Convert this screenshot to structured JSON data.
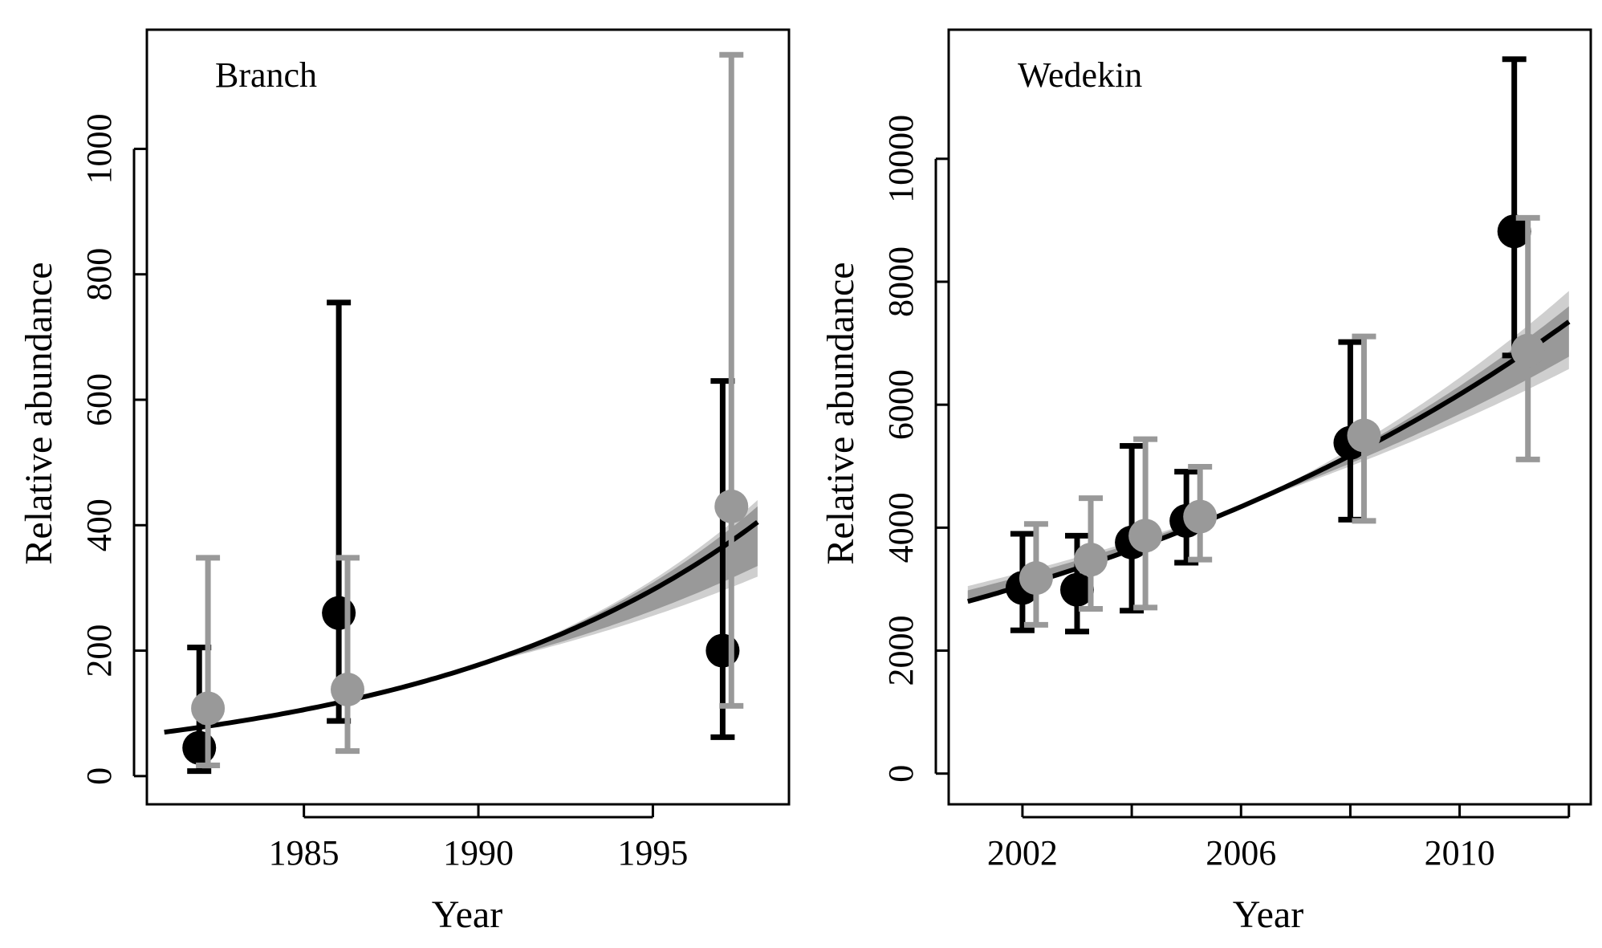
{
  "chart_data": [
    {
      "type": "scatter",
      "title": "Branch",
      "xlabel": "Year",
      "ylabel": "Relative abundance",
      "xlim": [
        1980.5,
        1998.9
      ],
      "ylim": [
        -45,
        1190
      ],
      "xticks": [
        1985,
        1990,
        1995
      ],
      "xtick_labels": [
        "1985",
        "1990",
        "1995"
      ],
      "yticks": [
        0,
        200,
        400,
        600,
        800,
        1000
      ],
      "ytick_labels": [
        "0",
        "200",
        "400",
        "600",
        "800",
        "1000"
      ],
      "grid": false,
      "colors": {
        "series_a": "#000000",
        "series_b": "#999999",
        "band_outer": "#cfcfcf",
        "band_inner": "#999999"
      },
      "series": [
        {
          "color": "#000000",
          "points": [
            {
              "x": 1982,
              "y": 45,
              "lo": 8,
              "hi": 205
            },
            {
              "x": 1986,
              "y": 260,
              "lo": 88,
              "hi": 755
            },
            {
              "x": 1997,
              "y": 200,
              "lo": 62,
              "hi": 630
            }
          ]
        },
        {
          "color": "#999999",
          "points": [
            {
              "x": 1982.25,
              "y": 108,
              "lo": 17,
              "hi": 348
            },
            {
              "x": 1986.25,
              "y": 138,
              "lo": 40,
              "hi": 348
            },
            {
              "x": 1997.25,
              "y": 430,
              "lo": 112,
              "hi": 1150
            }
          ]
        }
      ],
      "trend": {
        "x0": 1981,
        "x1": 1998,
        "y_at_x0": 70,
        "y_at_x1": 405,
        "pivot_x": 1990,
        "outer_hi_x1": 440,
        "outer_lo_x1": 318,
        "inner_hi_x1": 430,
        "inner_lo_x1": 335
      }
    },
    {
      "type": "scatter",
      "title": "Wedekin",
      "xlabel": "Year",
      "ylabel": "Relative abundance",
      "xlim": [
        2000.65,
        2012.4
      ],
      "ylim": [
        -500,
        12100
      ],
      "xticks": [
        2002,
        2004,
        2006,
        2008,
        2010,
        2012
      ],
      "xtick_labels": [
        "2002",
        "",
        "2006",
        "",
        "2010",
        ""
      ],
      "yticks": [
        0,
        2000,
        4000,
        6000,
        8000,
        10000
      ],
      "ytick_labels": [
        "0",
        "2000",
        "4000",
        "6000",
        "8000",
        "10000"
      ],
      "grid": false,
      "colors": {
        "series_a": "#000000",
        "series_b": "#999999",
        "band_outer": "#cfcfcf",
        "band_inner": "#999999"
      },
      "series": [
        {
          "color": "#000000",
          "points": [
            {
              "x": 2002,
              "y": 3020,
              "lo": 2330,
              "hi": 3900
            },
            {
              "x": 2003,
              "y": 2990,
              "lo": 2310,
              "hi": 3870
            },
            {
              "x": 2004,
              "y": 3760,
              "lo": 2650,
              "hi": 5330
            },
            {
              "x": 2005,
              "y": 4110,
              "lo": 3430,
              "hi": 4910
            },
            {
              "x": 2008,
              "y": 5380,
              "lo": 4130,
              "hi": 7020
            },
            {
              "x": 2011,
              "y": 8820,
              "lo": 6800,
              "hi": 11620
            }
          ]
        },
        {
          "color": "#999999",
          "points": [
            {
              "x": 2002.25,
              "y": 3180,
              "lo": 2420,
              "hi": 4060
            },
            {
              "x": 2003.25,
              "y": 3480,
              "lo": 2680,
              "hi": 4480
            },
            {
              "x": 2004.25,
              "y": 3870,
              "lo": 2700,
              "hi": 5440
            },
            {
              "x": 2005.25,
              "y": 4180,
              "lo": 3480,
              "hi": 4990
            },
            {
              "x": 2008.25,
              "y": 5500,
              "lo": 4110,
              "hi": 7110
            },
            {
              "x": 2011.25,
              "y": 6880,
              "lo": 5110,
              "hi": 9040
            }
          ]
        }
      ],
      "trend": {
        "x0": 2001,
        "x1": 2012,
        "y_at_x0": 2800,
        "y_at_x1": 7350,
        "pivot_x": 2006.2,
        "outer_hi_x0": 3050,
        "outer_lo_x0": 2760,
        "inner_hi_x0": 2980,
        "inner_lo_x0": 2800,
        "outer_hi_x1": 7850,
        "outer_lo_x1": 6580,
        "inner_hi_x1": 7600,
        "inner_lo_x1": 6780
      }
    }
  ]
}
